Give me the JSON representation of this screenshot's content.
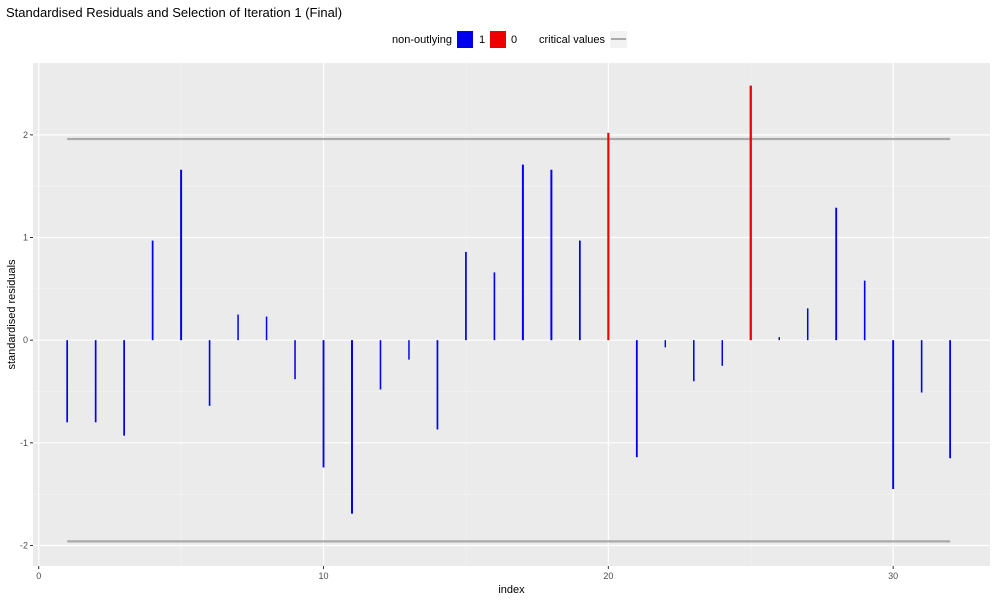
{
  "chart_data": {
    "type": "bar",
    "title": "Standardised Residuals and Selection of Iteration 1 (Final)",
    "xlabel": "index",
    "ylabel": "standardised residuals",
    "xlim": [
      -0.2,
      33.4
    ],
    "ylim": [
      -2.2,
      2.7
    ],
    "x_ticks": [
      0,
      10,
      20,
      30
    ],
    "y_ticks": [
      -2,
      -1,
      0,
      1,
      2
    ],
    "legend": {
      "position": "top",
      "fill_title": "non-outlying",
      "fill_entries": [
        {
          "label": "1",
          "color": "#0000ee"
        },
        {
          "label": "0",
          "color": "#ee0000"
        }
      ],
      "line_title": "critical values",
      "line_color": "#aaaaaa"
    },
    "critical_values": [
      1.96,
      -1.96
    ],
    "series": [
      {
        "index": 1,
        "value": -0.8,
        "non_outlying": 1
      },
      {
        "index": 2,
        "value": -0.8,
        "non_outlying": 1
      },
      {
        "index": 3,
        "value": -0.93,
        "non_outlying": 1
      },
      {
        "index": 4,
        "value": 0.97,
        "non_outlying": 1
      },
      {
        "index": 5,
        "value": 1.66,
        "non_outlying": 1
      },
      {
        "index": 6,
        "value": -0.64,
        "non_outlying": 1
      },
      {
        "index": 7,
        "value": 0.25,
        "non_outlying": 1
      },
      {
        "index": 8,
        "value": 0.23,
        "non_outlying": 1
      },
      {
        "index": 9,
        "value": -0.38,
        "non_outlying": 1
      },
      {
        "index": 10,
        "value": -1.24,
        "non_outlying": 1
      },
      {
        "index": 11,
        "value": -1.69,
        "non_outlying": 1
      },
      {
        "index": 12,
        "value": -0.48,
        "non_outlying": 1
      },
      {
        "index": 13,
        "value": -0.19,
        "non_outlying": 1
      },
      {
        "index": 14,
        "value": -0.87,
        "non_outlying": 1
      },
      {
        "index": 15,
        "value": 0.86,
        "non_outlying": 1
      },
      {
        "index": 16,
        "value": 0.66,
        "non_outlying": 1
      },
      {
        "index": 17,
        "value": 1.71,
        "non_outlying": 1
      },
      {
        "index": 18,
        "value": 1.66,
        "non_outlying": 1
      },
      {
        "index": 19,
        "value": 0.97,
        "non_outlying": 1
      },
      {
        "index": 20,
        "value": 2.02,
        "non_outlying": 0
      },
      {
        "index": 21,
        "value": -1.14,
        "non_outlying": 1
      },
      {
        "index": 22,
        "value": -0.07,
        "non_outlying": 1
      },
      {
        "index": 23,
        "value": -0.4,
        "non_outlying": 1
      },
      {
        "index": 24,
        "value": -0.25,
        "non_outlying": 1
      },
      {
        "index": 25,
        "value": 2.48,
        "non_outlying": 0
      },
      {
        "index": 26,
        "value": 0.03,
        "non_outlying": 1
      },
      {
        "index": 27,
        "value": 0.31,
        "non_outlying": 1
      },
      {
        "index": 28,
        "value": 1.29,
        "non_outlying": 1
      },
      {
        "index": 29,
        "value": 0.58,
        "non_outlying": 1
      },
      {
        "index": 30,
        "value": -1.45,
        "non_outlying": 1
      },
      {
        "index": 31,
        "value": -0.51,
        "non_outlying": 1
      },
      {
        "index": 32,
        "value": -1.15,
        "non_outlying": 1
      }
    ]
  }
}
